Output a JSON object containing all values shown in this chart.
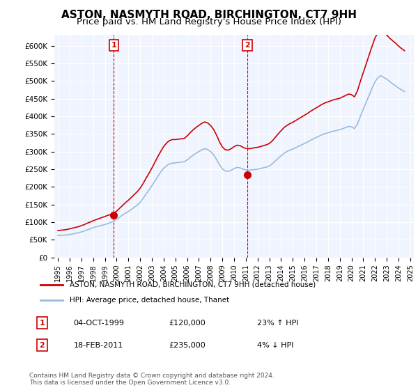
{
  "title": "ASTON, NASMYTH ROAD, BIRCHINGTON, CT7 9HH",
  "subtitle": "Price paid vs. HM Land Registry's House Price Index (HPI)",
  "title_fontsize": 11,
  "subtitle_fontsize": 9.5,
  "bg_color": "#ffffff",
  "plot_bg_color": "#f0f4ff",
  "grid_color": "#ffffff",
  "ylim": [
    0,
    630000
  ],
  "yticks": [
    0,
    50000,
    100000,
    150000,
    200000,
    250000,
    300000,
    350000,
    400000,
    450000,
    500000,
    550000,
    600000
  ],
  "ytick_labels": [
    "£0",
    "£50K",
    "£100K",
    "£150K",
    "£200K",
    "£250K",
    "£300K",
    "£350K",
    "£400K",
    "£450K",
    "£500K",
    "£550K",
    "£600K"
  ],
  "red_line_color": "#cc0000",
  "blue_line_color": "#99bbdd",
  "marker_color": "#cc0000",
  "sale1_year": 1999.75,
  "sale1_price": 120000,
  "sale1_label": "1",
  "sale2_year": 2011.12,
  "sale2_price": 235000,
  "sale2_label": "2",
  "legend_label_red": "ASTON, NASMYTH ROAD, BIRCHINGTON, CT7 9HH (detached house)",
  "legend_label_blue": "HPI: Average price, detached house, Thanet",
  "table_row1": [
    "1",
    "04-OCT-1999",
    "£120,000",
    "23% ↑ HPI"
  ],
  "table_row2": [
    "2",
    "18-FEB-2011",
    "£235,000",
    "4% ↓ HPI"
  ],
  "copyright_text": "Contains HM Land Registry data © Crown copyright and database right 2024.\nThis data is licensed under the Open Government Licence v3.0.",
  "hpi_data": {
    "years": [
      1995.0,
      1995.25,
      1995.5,
      1995.75,
      1996.0,
      1996.25,
      1996.5,
      1996.75,
      1997.0,
      1997.25,
      1997.5,
      1997.75,
      1998.0,
      1998.25,
      1998.5,
      1998.75,
      1999.0,
      1999.25,
      1999.5,
      1999.75,
      2000.0,
      2000.25,
      2000.5,
      2000.75,
      2001.0,
      2001.25,
      2001.5,
      2001.75,
      2002.0,
      2002.25,
      2002.5,
      2002.75,
      2003.0,
      2003.25,
      2003.5,
      2003.75,
      2004.0,
      2004.25,
      2004.5,
      2004.75,
      2005.0,
      2005.25,
      2005.5,
      2005.75,
      2006.0,
      2006.25,
      2006.5,
      2006.75,
      2007.0,
      2007.25,
      2007.5,
      2007.75,
      2008.0,
      2008.25,
      2008.5,
      2008.75,
      2009.0,
      2009.25,
      2009.5,
      2009.75,
      2010.0,
      2010.25,
      2010.5,
      2010.75,
      2011.0,
      2011.25,
      2011.5,
      2011.75,
      2012.0,
      2012.25,
      2012.5,
      2012.75,
      2013.0,
      2013.25,
      2013.5,
      2013.75,
      2014.0,
      2014.25,
      2014.5,
      2014.75,
      2015.0,
      2015.25,
      2015.5,
      2015.75,
      2016.0,
      2016.25,
      2016.5,
      2016.75,
      2017.0,
      2017.25,
      2017.5,
      2017.75,
      2018.0,
      2018.25,
      2018.5,
      2018.75,
      2019.0,
      2019.25,
      2019.5,
      2019.75,
      2020.0,
      2020.25,
      2020.5,
      2020.75,
      2021.0,
      2021.25,
      2021.5,
      2021.75,
      2022.0,
      2022.25,
      2022.5,
      2022.75,
      2023.0,
      2023.25,
      2023.5,
      2023.75,
      2024.0,
      2024.25,
      2024.5
    ],
    "values": [
      62000,
      62500,
      63000,
      63500,
      65000,
      66500,
      68000,
      70000,
      72000,
      75000,
      78000,
      81000,
      84000,
      87000,
      89000,
      91000,
      93000,
      96000,
      99000,
      103000,
      108000,
      114000,
      120000,
      125000,
      130000,
      136000,
      142000,
      148000,
      156000,
      167000,
      179000,
      191000,
      203000,
      216000,
      229000,
      242000,
      252000,
      260000,
      265000,
      267000,
      268000,
      269000,
      270000,
      271000,
      276000,
      283000,
      289000,
      295000,
      300000,
      305000,
      308000,
      306000,
      300000,
      291000,
      278000,
      263000,
      251000,
      245000,
      244000,
      247000,
      252000,
      255000,
      254000,
      250000,
      248000,
      247000,
      248000,
      249000,
      250000,
      252000,
      254000,
      256000,
      259000,
      265000,
      273000,
      281000,
      288000,
      295000,
      300000,
      304000,
      307000,
      311000,
      315000,
      319000,
      323000,
      327000,
      332000,
      336000,
      340000,
      344000,
      348000,
      351000,
      353000,
      356000,
      358000,
      360000,
      362000,
      365000,
      368000,
      371000,
      370000,
      365000,
      378000,
      400000,
      420000,
      440000,
      460000,
      480000,
      498000,
      510000,
      515000,
      510000,
      505000,
      498000,
      492000,
      486000,
      480000,
      475000,
      470000
    ]
  },
  "red_data": {
    "years": [
      1995.0,
      1995.25,
      1995.5,
      1995.75,
      1996.0,
      1996.25,
      1996.5,
      1996.75,
      1997.0,
      1997.25,
      1997.5,
      1997.75,
      1998.0,
      1998.25,
      1998.5,
      1998.75,
      1999.0,
      1999.25,
      1999.5,
      1999.75,
      2000.0,
      2000.25,
      2000.5,
      2000.75,
      2001.0,
      2001.25,
      2001.5,
      2001.75,
      2002.0,
      2002.25,
      2002.5,
      2002.75,
      2003.0,
      2003.25,
      2003.5,
      2003.75,
      2004.0,
      2004.25,
      2004.5,
      2004.75,
      2005.0,
      2005.25,
      2005.5,
      2005.75,
      2006.0,
      2006.25,
      2006.5,
      2006.75,
      2007.0,
      2007.25,
      2007.5,
      2007.75,
      2008.0,
      2008.25,
      2008.5,
      2008.75,
      2009.0,
      2009.25,
      2009.5,
      2009.75,
      2010.0,
      2010.25,
      2010.5,
      2010.75,
      2011.0,
      2011.25,
      2011.5,
      2011.75,
      2012.0,
      2012.25,
      2012.5,
      2012.75,
      2013.0,
      2013.25,
      2013.5,
      2013.75,
      2014.0,
      2014.25,
      2014.5,
      2014.75,
      2015.0,
      2015.25,
      2015.5,
      2015.75,
      2016.0,
      2016.25,
      2016.5,
      2016.75,
      2017.0,
      2017.25,
      2017.5,
      2017.75,
      2018.0,
      2018.25,
      2018.5,
      2018.75,
      2019.0,
      2019.25,
      2019.5,
      2019.75,
      2020.0,
      2020.25,
      2020.5,
      2020.75,
      2021.0,
      2021.25,
      2021.5,
      2021.75,
      2022.0,
      2022.25,
      2022.5,
      2022.75,
      2023.0,
      2023.25,
      2023.5,
      2023.75,
      2024.0,
      2024.25,
      2024.5
    ],
    "values": [
      76000,
      77000,
      78000,
      79000,
      81000,
      83000,
      85000,
      87000,
      90000,
      93000,
      97000,
      100000,
      104000,
      107000,
      110000,
      113000,
      116000,
      119000,
      122000,
      125000,
      131000,
      139000,
      147000,
      155000,
      162000,
      170000,
      178000,
      186000,
      196000,
      209000,
      224000,
      238000,
      253000,
      269000,
      285000,
      300000,
      314000,
      324000,
      331000,
      334000,
      334000,
      335000,
      336000,
      337000,
      344000,
      353000,
      361000,
      368000,
      374000,
      380000,
      384000,
      381000,
      374000,
      363000,
      347000,
      328000,
      313000,
      305000,
      304000,
      308000,
      314000,
      318000,
      317000,
      312000,
      309000,
      308000,
      309000,
      311000,
      312000,
      314000,
      317000,
      319000,
      323000,
      330000,
      340000,
      350000,
      359000,
      368000,
      374000,
      379000,
      383000,
      388000,
      393000,
      398000,
      403000,
      408000,
      414000,
      419000,
      424000,
      429000,
      434000,
      438000,
      441000,
      444000,
      447000,
      449000,
      451000,
      455000,
      459000,
      463000,
      461000,
      455000,
      472000,
      499000,
      524000,
      549000,
      574000,
      599000,
      622000,
      638000,
      643000,
      637000,
      630000,
      621000,
      614000,
      607000,
      599000,
      592000,
      586000
    ]
  }
}
